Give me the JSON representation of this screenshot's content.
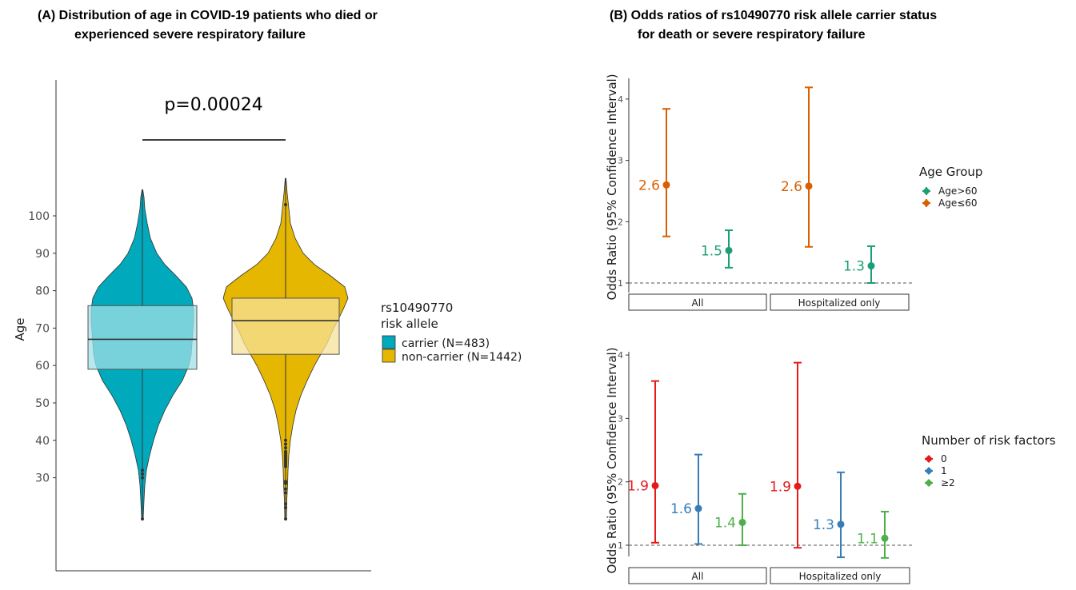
{
  "colors": {
    "carrier": "#00A9BC",
    "carrier_box": "#A0E0E7",
    "noncarrier": "#E5B700",
    "noncarrier_box": "#F5E19A",
    "age_gt60": "#1B9E77",
    "age_le60": "#D95F02",
    "rf0": "#E41A1C",
    "rf1": "#377EB8",
    "rf2": "#4DAF4A"
  },
  "chart_data": [
    {
      "type": "violin",
      "title": "(A) Distribution of age in COVID-19 patients who died or\n      experienced severe respiratory failure",
      "title_line1": "(A) Distribution of age in COVID-19 patients who died or",
      "title_line2": "experienced severe respiratory failure",
      "ylabel": "Age",
      "yticks": [
        30,
        40,
        50,
        60,
        70,
        80,
        90,
        100
      ],
      "ylim": [
        4,
        131
      ],
      "annotation": "p=0.00024",
      "legend_title_line1": "rs10490770",
      "legend_title_line2": "risk allele",
      "series": [
        {
          "name": "carrier (N=483)",
          "min": 19,
          "q1": 59,
          "median": 67,
          "q3": 76,
          "max": 107,
          "outliers": [
            31,
            32,
            30,
            19
          ]
        },
        {
          "name": "non-carrier (N=1442)",
          "min": 19,
          "q1": 63,
          "median": 72,
          "q3": 78,
          "max": 110,
          "outliers": [
            40,
            39,
            38,
            37,
            36.5,
            36,
            35.5,
            35,
            34.5,
            34,
            33.5,
            33,
            29,
            28.5,
            27,
            26,
            23,
            22,
            19,
            103
          ]
        }
      ]
    },
    {
      "type": "errorbar",
      "title_line1": "(B) Odds ratios of rs10490770 risk allele carrier status",
      "title_line2": "for death or severe respiratory failure",
      "ylabel": "Odds Ratio (95% Confidence Interval)",
      "yticks": [
        1,
        2,
        3,
        4
      ],
      "ylim": [
        0.8,
        4.3
      ],
      "facets": [
        "All",
        "Hospitalized only"
      ],
      "legend_title": "Age Group",
      "series": [
        {
          "name": "Age>60",
          "values": [
            1.53,
            1.28
          ],
          "lower": [
            1.25,
            1.0
          ],
          "upper": [
            1.86,
            1.6
          ],
          "labels": [
            "1.5",
            "1.3"
          ]
        },
        {
          "name": "Age≤60",
          "values": [
            2.6,
            2.58
          ],
          "lower": [
            1.76,
            1.59
          ],
          "upper": [
            3.84,
            4.19
          ],
          "labels": [
            "2.6",
            "2.6"
          ]
        }
      ]
    },
    {
      "type": "errorbar",
      "ylabel": "Odds Ratio (95% Confidence Interval)",
      "yticks": [
        1,
        2,
        3,
        4
      ],
      "ylim": [
        0.8,
        4.0
      ],
      "facets": [
        "All",
        "Hospitalized only"
      ],
      "legend_title": "Number of risk factors",
      "series": [
        {
          "name": "0",
          "values": [
            1.94,
            1.93
          ],
          "lower": [
            1.04,
            0.96
          ],
          "upper": [
            3.59,
            3.88
          ],
          "labels": [
            "1.9",
            "1.9"
          ]
        },
        {
          "name": "1",
          "values": [
            1.58,
            1.33
          ],
          "lower": [
            1.02,
            0.81
          ],
          "upper": [
            2.43,
            2.15
          ],
          "labels": [
            "1.6",
            "1.3"
          ]
        },
        {
          "name": "≥2",
          "values": [
            1.36,
            1.11
          ],
          "lower": [
            1.0,
            0.8
          ],
          "upper": [
            1.81,
            1.53
          ],
          "labels": [
            "1.4",
            "1.1"
          ]
        }
      ]
    }
  ]
}
